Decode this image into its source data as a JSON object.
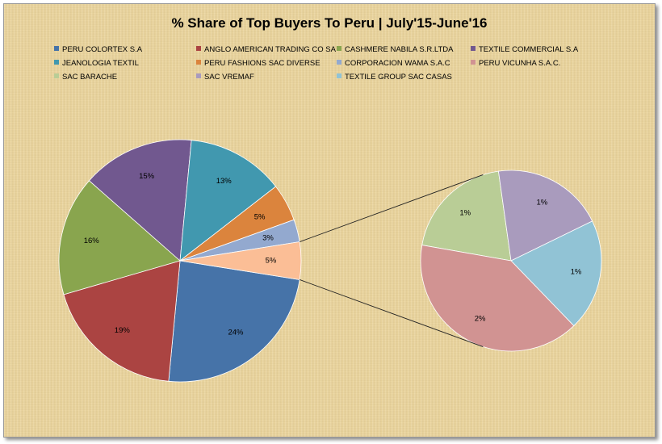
{
  "chart_data": {
    "type": "pie",
    "subtype": "pie-of-pie",
    "title": "% Share of Top Buyers To Peru | July'15-June'16",
    "legend_position": "top",
    "series": [
      {
        "name": "PERU COLORTEX S.A",
        "value": 24,
        "label": "24%",
        "color": "#4673a8"
      },
      {
        "name": "ANGLO AMERICAN TRADING CO SA",
        "value": 19,
        "label": "19%",
        "color": "#ab4442"
      },
      {
        "name": "CASHMERE NABILA S.R.LTDA",
        "value": 16,
        "label": "16%",
        "color": "#89a54e"
      },
      {
        "name": "TEXTILE COMMERCIAL S.A",
        "value": 15,
        "label": "15%",
        "color": "#71588f"
      },
      {
        "name": "JEANOLOGIA TEXTIL",
        "value": 13,
        "label": "13%",
        "color": "#4198af"
      },
      {
        "name": "PERU FASHIONS SAC DIVERSE",
        "value": 5,
        "label": "5%",
        "color": "#db843d"
      },
      {
        "name": "CORPORACION WAMA S.A.C",
        "value": 3,
        "label": "3%",
        "color": "#93a9cf"
      },
      {
        "name": "PERU VICUNHA S.A.C.",
        "value": 2,
        "label": "2%",
        "color": "#d19392"
      },
      {
        "name": "SAC BARACHE",
        "value": 1,
        "label": "1%",
        "color": "#b9cd96"
      },
      {
        "name": "SAC VREMAF",
        "value": 1,
        "label": "1%",
        "color": "#a99bbd"
      },
      {
        "name": "TEXTILE GROUP SAC CASAS",
        "value": 1,
        "label": "1%",
        "color": "#91c3d5"
      }
    ],
    "main_pie": [
      {
        "series": 0,
        "pct": 24,
        "label": "24%"
      },
      {
        "series": 1,
        "pct": 19,
        "label": "19%"
      },
      {
        "series": 2,
        "pct": 16,
        "label": "16%"
      },
      {
        "series": 3,
        "pct": 15,
        "label": "15%"
      },
      {
        "series": 4,
        "pct": 13,
        "label": "13%"
      },
      {
        "series": 5,
        "pct": 5,
        "label": "5%"
      },
      {
        "series": 6,
        "pct": 3,
        "label": "3%"
      },
      {
        "series": "other",
        "pct": 5,
        "label": "5%",
        "color": "#fbbe96"
      }
    ],
    "secondary_pie": [
      {
        "series": 8,
        "pct": 1,
        "label": "1%"
      },
      {
        "series": 9,
        "pct": 1,
        "label": "1%"
      },
      {
        "series": 10,
        "pct": 1,
        "label": "1%"
      },
      {
        "series": 7,
        "pct": 2,
        "label": "2%"
      }
    ]
  }
}
